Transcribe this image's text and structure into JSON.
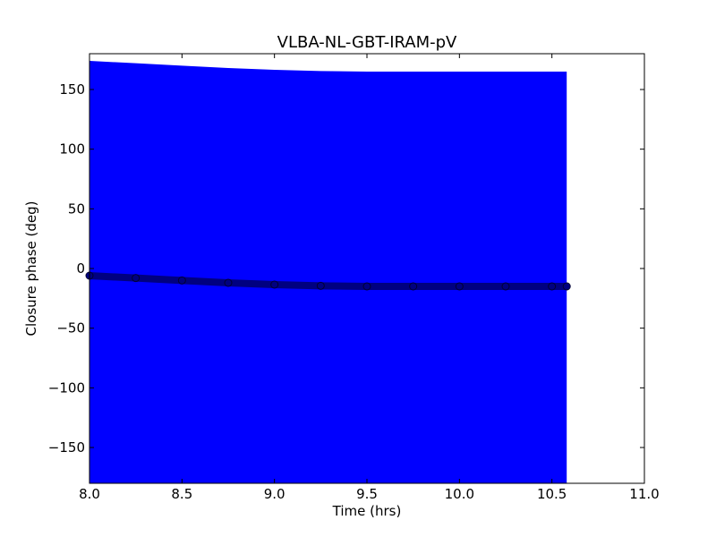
{
  "chart_data": {
    "type": "scatter",
    "title": "VLBA-NL-GBT-IRAM-pV",
    "xlabel": "Time (hrs)",
    "ylabel": "Closure phase (deg)",
    "xlim": [
      8.0,
      11.0
    ],
    "ylim": [
      -180,
      180
    ],
    "x_ticks": [
      8.0,
      8.5,
      9.0,
      9.5,
      10.0,
      10.5,
      11.0
    ],
    "x_tick_labels": [
      "8.0",
      "8.5",
      "9.0",
      "9.5",
      "10.0",
      "10.5",
      "11.0"
    ],
    "y_ticks": [
      150,
      100,
      50,
      0,
      -50,
      -100,
      -150
    ],
    "y_tick_labels": [
      "150",
      "100",
      "50",
      "0",
      "−50",
      "−100",
      "−150"
    ],
    "grid": false,
    "colors": {
      "error_band": "#0000ff",
      "points": "#000080"
    },
    "series": [
      {
        "x": [
          8.0,
          8.25,
          8.5,
          8.75,
          9.0,
          9.25,
          9.5,
          9.75,
          10.0,
          10.25,
          10.5,
          10.58
        ],
        "y": [
          -6,
          -8,
          -10,
          -12,
          -13.5,
          -14.5,
          -15,
          -15,
          -15,
          -15,
          -15,
          -15
        ],
        "y_error": [
          180,
          180,
          180,
          180,
          180,
          180,
          180,
          180,
          180,
          180,
          180,
          180
        ]
      }
    ]
  }
}
